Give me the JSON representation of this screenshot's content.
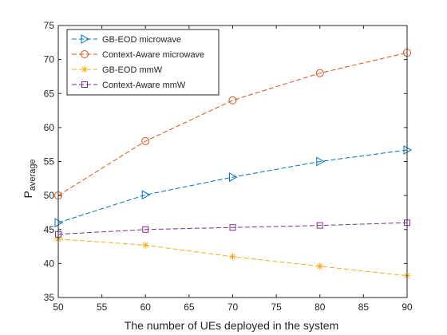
{
  "chart_data": {
    "type": "line",
    "title": "",
    "xlabel": "The number of UEs deployed in the system",
    "ylabel": "P",
    "ylabel_subscript": "average",
    "x": [
      50,
      60,
      70,
      80,
      90
    ],
    "xlim": [
      50,
      90
    ],
    "ylim": [
      35,
      75
    ],
    "xticks": [
      50,
      55,
      60,
      65,
      70,
      75,
      80,
      85,
      90
    ],
    "yticks": [
      35,
      40,
      45,
      50,
      55,
      60,
      65,
      70,
      75
    ],
    "grid": false,
    "legend_position": "top-left",
    "series": [
      {
        "name": "GB-EOD microwave",
        "values": [
          46.0,
          50.1,
          52.7,
          55.0,
          56.7
        ],
        "color": "#0072BD",
        "marker": "triangle-right"
      },
      {
        "name": "Context-Aware microwave",
        "values": [
          50.0,
          58.0,
          64.0,
          68.0,
          71.0
        ],
        "color": "#D95319",
        "marker": "circle"
      },
      {
        "name": "GB-EOD mmW",
        "values": [
          43.6,
          42.7,
          41.0,
          39.6,
          38.2
        ],
        "color": "#EDB120",
        "marker": "asterisk"
      },
      {
        "name": "Context-Aware mmW",
        "values": [
          44.3,
          45.0,
          45.3,
          45.6,
          46.0
        ],
        "color": "#7E2F8E",
        "marker": "square"
      }
    ]
  }
}
